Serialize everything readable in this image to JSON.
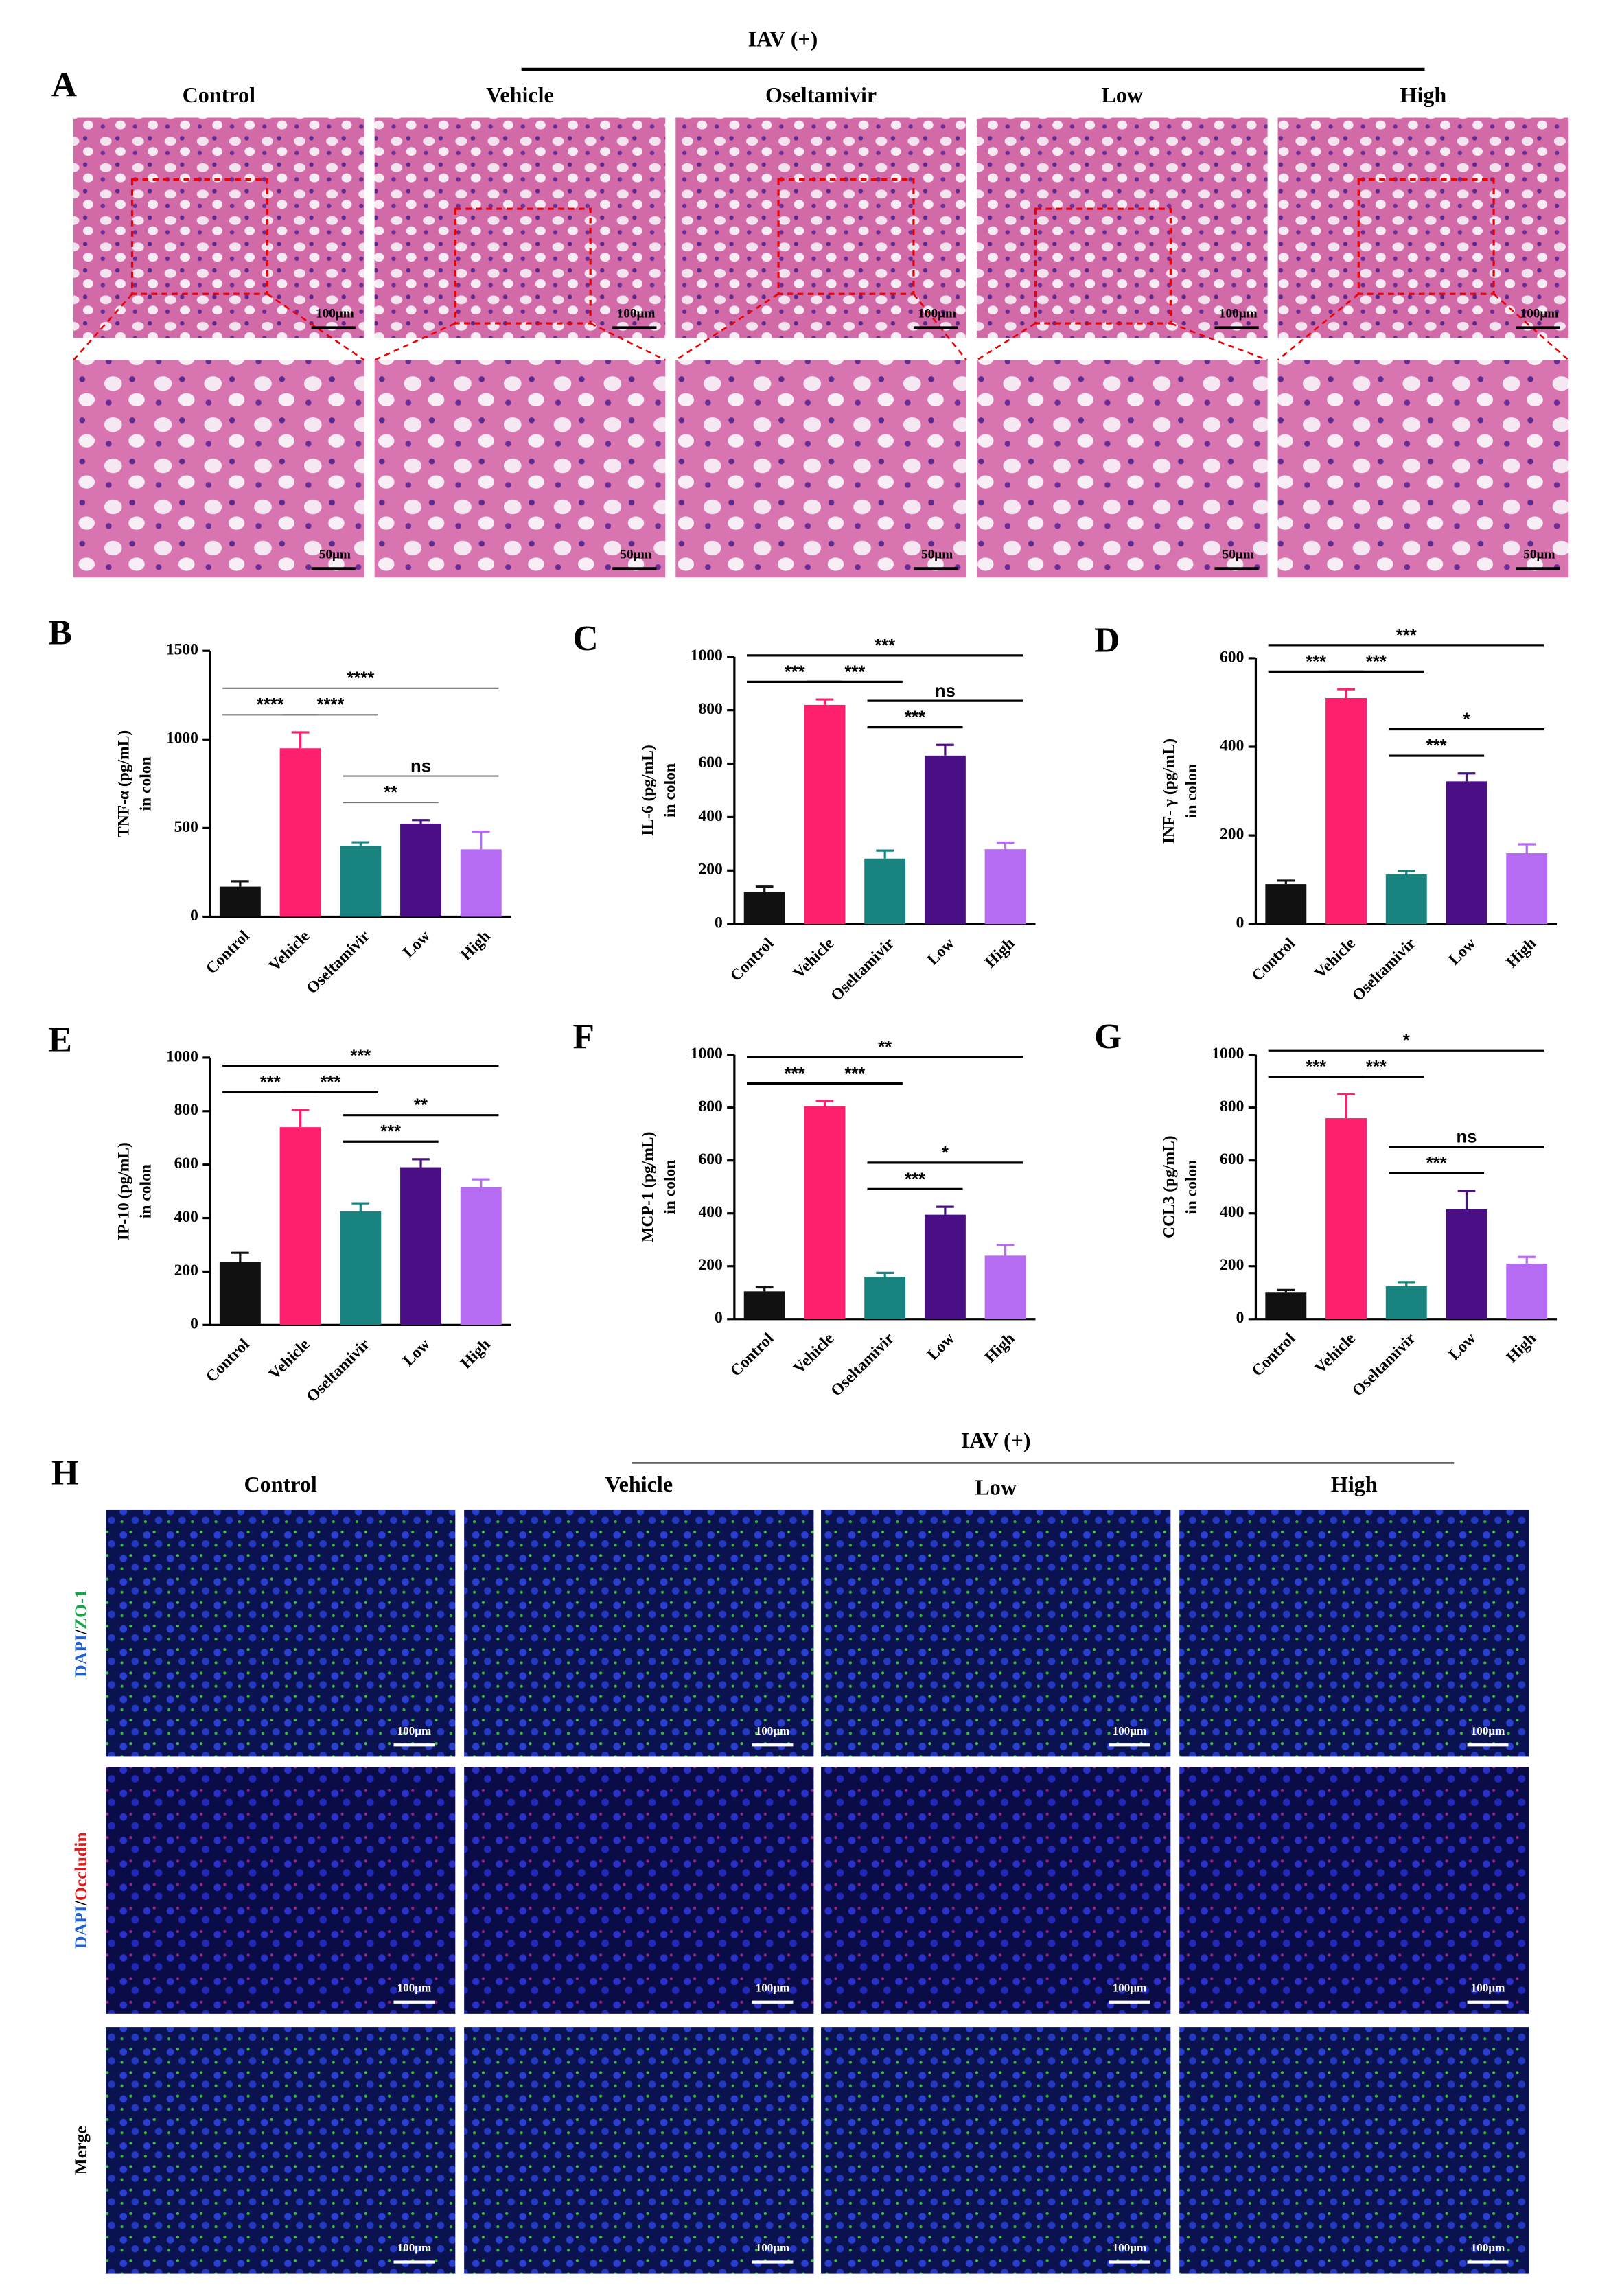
{
  "panel_a": {
    "letter": "A",
    "group_label": "IAV (+)",
    "columns": [
      "Control",
      "Vehicle",
      "Oseltamivir",
      "Low",
      "High"
    ],
    "scale_bars": [
      "100μm",
      "50μm"
    ]
  },
  "chart_data": [
    {
      "type": "bar",
      "panel": "B",
      "ylabel": [
        "TNF-α (pg/mL)",
        "in colon"
      ],
      "categories": [
        "Control",
        "Vehicle",
        "Oseltamivir",
        "Low",
        "High"
      ],
      "values": [
        170,
        950,
        400,
        525,
        380
      ],
      "errors": [
        30,
        90,
        20,
        20,
        100
      ],
      "colors": [
        "#111111",
        "#ff1f6f",
        "#19847f",
        "#4a0f85",
        "#b66cf2"
      ],
      "ylim": [
        0,
        1500
      ],
      "yticks": [
        0,
        500,
        1000,
        1500
      ],
      "annotations": [
        {
          "label": "****",
          "between": [
            "Control",
            "Vehicle"
          ]
        },
        {
          "label": "****",
          "between": [
            "Vehicle",
            "Oseltamivir"
          ]
        },
        {
          "label": "****",
          "between": [
            "Control",
            "High"
          ]
        },
        {
          "label": "ns",
          "between": [
            "Oseltamivir",
            "High"
          ]
        },
        {
          "label": "**",
          "between": [
            "Oseltamivir",
            "Low"
          ]
        }
      ]
    },
    {
      "type": "bar",
      "panel": "C",
      "ylabel": [
        "IL-6 (pg/mL)",
        "in colon"
      ],
      "categories": [
        "Control",
        "Vehicle",
        "Oseltamivir",
        "Low",
        "High"
      ],
      "values": [
        120,
        820,
        245,
        630,
        280
      ],
      "errors": [
        20,
        20,
        30,
        40,
        25
      ],
      "colors": [
        "#111111",
        "#ff1f6f",
        "#19847f",
        "#4a0f85",
        "#b66cf2"
      ],
      "ylim": [
        0,
        1000
      ],
      "yticks": [
        0,
        200,
        400,
        600,
        800,
        1000
      ],
      "annotations": [
        {
          "label": "***",
          "between": [
            "Control",
            "Vehicle"
          ]
        },
        {
          "label": "***",
          "between": [
            "Vehicle",
            "Oseltamivir"
          ]
        },
        {
          "label": "***",
          "between": [
            "Control",
            "High"
          ]
        },
        {
          "label": "ns",
          "between": [
            "Oseltamivir",
            "High"
          ]
        },
        {
          "label": "***",
          "between": [
            "Oseltamivir",
            "Low"
          ]
        }
      ]
    },
    {
      "type": "bar",
      "panel": "D",
      "ylabel": [
        "INF- γ (pg/mL)",
        "in colon"
      ],
      "categories": [
        "Control",
        "Vehicle",
        "Oseltamivir",
        "Low",
        "High"
      ],
      "values": [
        90,
        510,
        112,
        322,
        160
      ],
      "errors": [
        8,
        20,
        8,
        18,
        20
      ],
      "colors": [
        "#111111",
        "#ff1f6f",
        "#19847f",
        "#4a0f85",
        "#b66cf2"
      ],
      "ylim": [
        0,
        600
      ],
      "yticks": [
        0,
        200,
        400,
        600
      ],
      "annotations": [
        {
          "label": "***",
          "between": [
            "Control",
            "Vehicle"
          ]
        },
        {
          "label": "***",
          "between": [
            "Vehicle",
            "Oseltamivir"
          ]
        },
        {
          "label": "***",
          "between": [
            "Control",
            "High"
          ]
        },
        {
          "label": "*",
          "between": [
            "Oseltamivir",
            "High"
          ]
        },
        {
          "label": "***",
          "between": [
            "Oseltamivir",
            "Low"
          ]
        }
      ]
    },
    {
      "type": "bar",
      "panel": "E",
      "ylabel": [
        "IP-10 (pg/mL)",
        "in colon"
      ],
      "categories": [
        "Control",
        "Vehicle",
        "Oseltamivir",
        "Low",
        "High"
      ],
      "values": [
        235,
        740,
        425,
        590,
        515
      ],
      "errors": [
        35,
        65,
        30,
        30,
        30
      ],
      "colors": [
        "#111111",
        "#ff1f6f",
        "#19847f",
        "#4a0f85",
        "#b66cf2"
      ],
      "ylim": [
        0,
        1000
      ],
      "yticks": [
        0,
        200,
        400,
        600,
        800,
        1000
      ],
      "annotations": [
        {
          "label": "***",
          "between": [
            "Control",
            "Vehicle"
          ]
        },
        {
          "label": "***",
          "between": [
            "Vehicle",
            "Oseltamivir"
          ]
        },
        {
          "label": "***",
          "between": [
            "Control",
            "High"
          ]
        },
        {
          "label": "**",
          "between": [
            "Oseltamivir",
            "High"
          ]
        },
        {
          "label": "***",
          "between": [
            "Oseltamivir",
            "Low"
          ]
        }
      ]
    },
    {
      "type": "bar",
      "panel": "F",
      "ylabel": [
        "MCP-1 (pg/mL)",
        "in colon"
      ],
      "categories": [
        "Control",
        "Vehicle",
        "Oseltamivir",
        "Low",
        "High"
      ],
      "values": [
        105,
        805,
        160,
        395,
        240
      ],
      "errors": [
        15,
        20,
        15,
        30,
        40
      ],
      "colors": [
        "#111111",
        "#ff1f6f",
        "#19847f",
        "#4a0f85",
        "#b66cf2"
      ],
      "ylim": [
        0,
        1000
      ],
      "yticks": [
        0,
        200,
        400,
        600,
        800,
        1000
      ],
      "annotations": [
        {
          "label": "***",
          "between": [
            "Control",
            "Vehicle"
          ]
        },
        {
          "label": "***",
          "between": [
            "Vehicle",
            "Oseltamivir"
          ]
        },
        {
          "label": "**",
          "between": [
            "Control",
            "High"
          ]
        },
        {
          "label": "*",
          "between": [
            "Oseltamivir",
            "High"
          ]
        },
        {
          "label": "***",
          "between": [
            "Oseltamivir",
            "Low"
          ]
        }
      ]
    },
    {
      "type": "bar",
      "panel": "G",
      "ylabel": [
        "CCL3 (pg/mL)",
        "in colon"
      ],
      "categories": [
        "Control",
        "Vehicle",
        "Oseltamivir",
        "Low",
        "High"
      ],
      "values": [
        100,
        760,
        125,
        415,
        210
      ],
      "errors": [
        10,
        90,
        15,
        70,
        25
      ],
      "colors": [
        "#111111",
        "#ff1f6f",
        "#19847f",
        "#4a0f85",
        "#b66cf2"
      ],
      "ylim": [
        0,
        1000
      ],
      "yticks": [
        0,
        200,
        400,
        600,
        800,
        1000
      ],
      "annotations": [
        {
          "label": "***",
          "between": [
            "Control",
            "Vehicle"
          ]
        },
        {
          "label": "***",
          "between": [
            "Vehicle",
            "Oseltamivir"
          ]
        },
        {
          "label": "*",
          "between": [
            "Control",
            "High"
          ]
        },
        {
          "label": "ns",
          "between": [
            "Oseltamivir",
            "High"
          ]
        },
        {
          "label": "***",
          "between": [
            "Oseltamivir",
            "Low"
          ]
        }
      ]
    }
  ],
  "panel_h": {
    "letter": "H",
    "group_label": "IAV (+)",
    "columns": [
      "Control",
      "Vehicle",
      "Low",
      "High"
    ],
    "rows": [
      [
        "DAPI",
        "/",
        "ZO-1"
      ],
      [
        "DAPI",
        "/",
        "Occludin"
      ],
      [
        "Merge"
      ]
    ],
    "scale_bar": "100μm"
  }
}
